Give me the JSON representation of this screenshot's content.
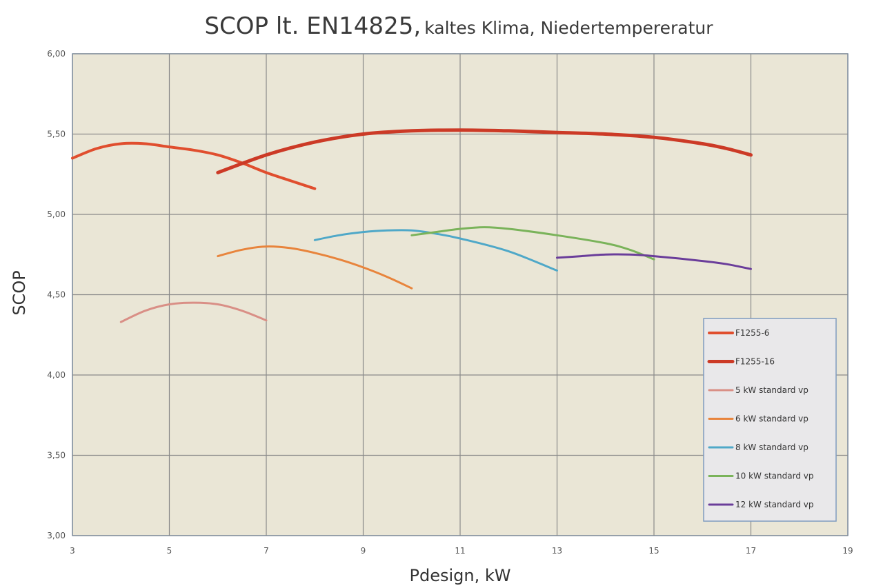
{
  "chart_data": {
    "type": "line",
    "title": "SCOP lt. EN14825,",
    "subtitle": "kaltes Klima, Niedertempereratur",
    "xlabel": "Pdesign, kW",
    "ylabel": "SCOP",
    "xlim": [
      3,
      19
    ],
    "ylim": [
      3.0,
      6.0
    ],
    "x_ticks": [
      3,
      5,
      7,
      9,
      11,
      13,
      15,
      17,
      19
    ],
    "x_tick_labels": [
      "3",
      "5",
      "7",
      "9",
      "11",
      "13",
      "15",
      "17",
      "19"
    ],
    "y_ticks": [
      3.0,
      3.5,
      4.0,
      4.5,
      5.0,
      5.5,
      6.0
    ],
    "y_tick_labels": [
      "3,00",
      "3,50",
      "4,00",
      "4,50",
      "5,00",
      "5,50",
      "6,00"
    ],
    "grid": true,
    "legend_position": "bottom-right",
    "background_color": "#eae6d6",
    "series": [
      {
        "name": "F1255-6",
        "color": "#e04e2e",
        "width": 4,
        "points": [
          [
            3,
            5.35
          ],
          [
            3.5,
            5.41
          ],
          [
            4,
            5.44
          ],
          [
            4.5,
            5.44
          ],
          [
            5,
            5.42
          ],
          [
            5.5,
            5.4
          ],
          [
            6,
            5.37
          ],
          [
            6.5,
            5.32
          ],
          [
            7,
            5.26
          ],
          [
            7.5,
            5.21
          ],
          [
            8,
            5.16
          ]
        ]
      },
      {
        "name": "F1255-16",
        "color": "#cc3a26",
        "width": 5,
        "points": [
          [
            6,
            5.26
          ],
          [
            7,
            5.37
          ],
          [
            8,
            5.45
          ],
          [
            9,
            5.5
          ],
          [
            10,
            5.52
          ],
          [
            11,
            5.525
          ],
          [
            12,
            5.52
          ],
          [
            13,
            5.51
          ],
          [
            14,
            5.5
          ],
          [
            15,
            5.48
          ],
          [
            16,
            5.44
          ],
          [
            16.5,
            5.41
          ],
          [
            17,
            5.37
          ]
        ]
      },
      {
        "name": "5 kW standard vp",
        "color": "#d98f86",
        "width": 3,
        "points": [
          [
            4,
            4.33
          ],
          [
            4.5,
            4.4
          ],
          [
            5,
            4.44
          ],
          [
            5.5,
            4.45
          ],
          [
            6,
            4.44
          ],
          [
            6.5,
            4.4
          ],
          [
            7,
            4.34
          ]
        ]
      },
      {
        "name": "6 kW standard vp",
        "color": "#e8843c",
        "width": 3,
        "points": [
          [
            6,
            4.74
          ],
          [
            6.5,
            4.78
          ],
          [
            7,
            4.8
          ],
          [
            7.5,
            4.79
          ],
          [
            8,
            4.76
          ],
          [
            8.5,
            4.72
          ],
          [
            9,
            4.67
          ],
          [
            9.5,
            4.61
          ],
          [
            10,
            4.54
          ]
        ]
      },
      {
        "name": "8 kW standard vp",
        "color": "#4fa8c8",
        "width": 3,
        "points": [
          [
            8,
            4.84
          ],
          [
            8.5,
            4.87
          ],
          [
            9,
            4.89
          ],
          [
            9.5,
            4.9
          ],
          [
            10,
            4.9
          ],
          [
            10.5,
            4.88
          ],
          [
            11,
            4.85
          ],
          [
            12,
            4.77
          ],
          [
            13,
            4.65
          ]
        ]
      },
      {
        "name": "10 kW standard vp",
        "color": "#7ab35a",
        "width": 3,
        "points": [
          [
            10,
            4.87
          ],
          [
            10.5,
            4.89
          ],
          [
            11,
            4.91
          ],
          [
            11.5,
            4.92
          ],
          [
            12,
            4.91
          ],
          [
            13,
            4.87
          ],
          [
            14,
            4.82
          ],
          [
            14.5,
            4.78
          ],
          [
            15,
            4.72
          ]
        ]
      },
      {
        "name": "12 kW standard vp",
        "color": "#6a3d9a",
        "width": 3,
        "points": [
          [
            13,
            4.73
          ],
          [
            13.5,
            4.74
          ],
          [
            14,
            4.75
          ],
          [
            14.5,
            4.75
          ],
          [
            15,
            4.74
          ],
          [
            16,
            4.71
          ],
          [
            16.5,
            4.69
          ],
          [
            17,
            4.66
          ]
        ]
      }
    ]
  }
}
